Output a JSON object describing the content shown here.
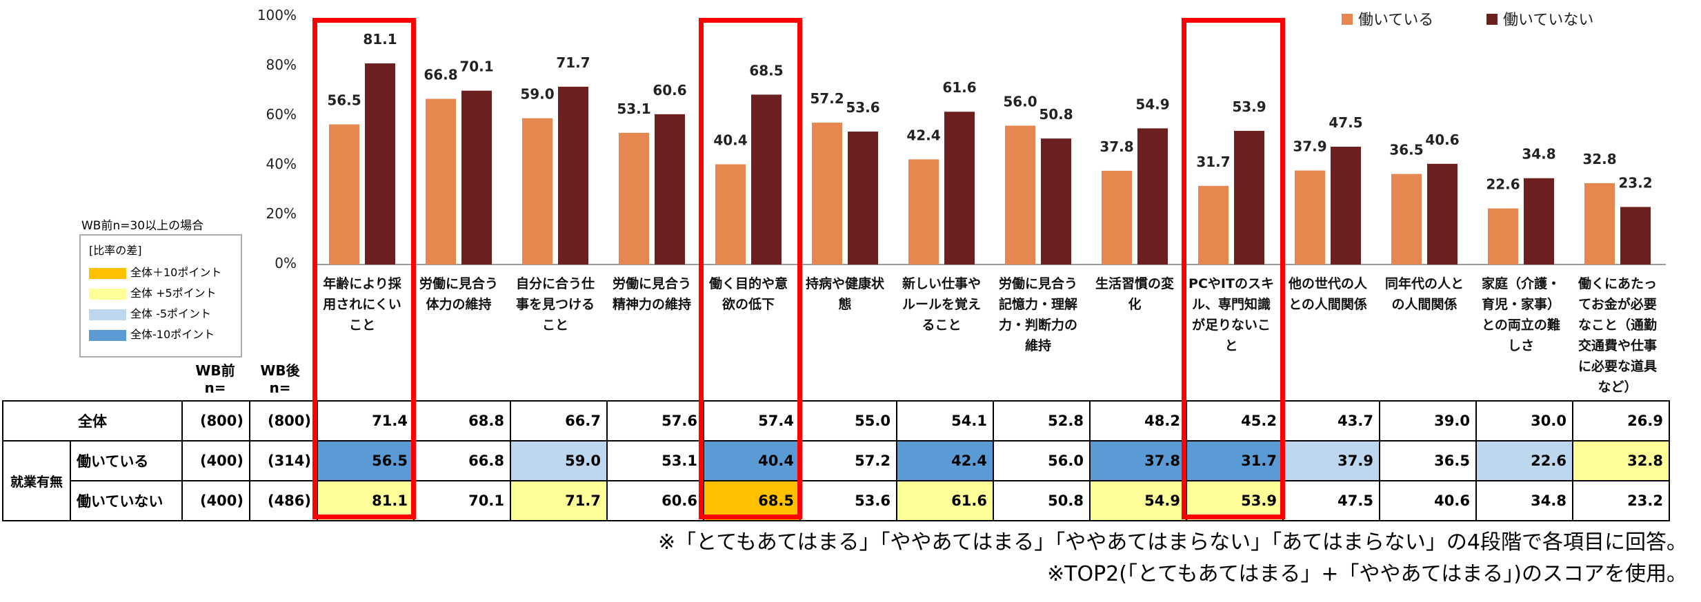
{
  "chart_data": {
    "type": "bar",
    "yticks": [
      "100%",
      "80%",
      "60%",
      "40%",
      "20%",
      "0%"
    ],
    "ylim": [
      0,
      100
    ],
    "categories": [
      "年齢により採用されにくいこと",
      "労働に見合う体力の維持",
      "自分に合う仕事を見つけること",
      "労働に見合う精神力の維持",
      "働く目的や意欲の低下",
      "持病や健康状態",
      "新しい仕事やルールを覚えること",
      "労働に見合う記憶力・理解力・判断力の維持",
      "生活習慣の変化",
      "PCやITのスキル、専門知識が足りないこと",
      "他の世代の人との人間関係",
      "同年代の人との人間関係",
      "家庭（介護・育児・家事）との両立の難しさ",
      "働くにあたってお金が必要なこと（通勤交通費や仕事に必要な道具など）"
    ],
    "series": [
      {
        "name": "働いている",
        "color": "#E6874F",
        "values": [
          56.5,
          66.8,
          59.0,
          53.1,
          40.4,
          57.2,
          42.4,
          56.0,
          37.8,
          31.7,
          37.9,
          36.5,
          22.6,
          32.8
        ]
      },
      {
        "name": "働いていない",
        "color": "#6B1F1F",
        "values": [
          81.1,
          70.1,
          71.7,
          60.6,
          68.5,
          53.6,
          61.6,
          50.8,
          54.9,
          53.9,
          47.5,
          40.6,
          34.8,
          23.2
        ]
      }
    ],
    "legend_position": "top-right",
    "highlighted_categories": [
      0,
      4,
      9
    ]
  },
  "legend_diff": {
    "note": "WB前n=30以上の場合",
    "title": "[比率の差]",
    "items": [
      {
        "label": "全体＋10ポイント",
        "color": "#FFC000"
      },
      {
        "label": "全体 +5ポイント",
        "color": "#FFFF99"
      },
      {
        "label": "全体 -5ポイント",
        "color": "#BDD7EE"
      },
      {
        "label": "全体-10ポイント",
        "color": "#5B9BD5"
      }
    ]
  },
  "table": {
    "head_before": "WB前",
    "head_after": "WB後",
    "head_n": "n=",
    "group_label": "就業有無",
    "rows": [
      {
        "label": "全体",
        "n_before": "(800)",
        "n_after": "(800)",
        "values": [
          "71.4",
          "68.8",
          "66.7",
          "57.6",
          "57.4",
          "55.0",
          "54.1",
          "52.8",
          "48.2",
          "45.2",
          "43.7",
          "39.0",
          "30.0",
          "26.9"
        ],
        "colors": [
          "",
          "",
          "",
          "",
          "",
          "",
          "",
          "",
          "",
          "",
          "",
          "",
          "",
          ""
        ]
      },
      {
        "label": "働いている",
        "n_before": "(400)",
        "n_after": "(314)",
        "values": [
          "56.5",
          "66.8",
          "59.0",
          "53.1",
          "40.4",
          "57.2",
          "42.4",
          "56.0",
          "37.8",
          "31.7",
          "37.9",
          "36.5",
          "22.6",
          "32.8"
        ],
        "colors": [
          "#5B9BD5",
          "",
          "#BDD7EE",
          "",
          "#5B9BD5",
          "",
          "#5B9BD5",
          "",
          "#5B9BD5",
          "#5B9BD5",
          "#BDD7EE",
          "",
          "#BDD7EE",
          "#FFFF99"
        ]
      },
      {
        "label": "働いていない",
        "n_before": "(400)",
        "n_after": "(486)",
        "values": [
          "81.1",
          "70.1",
          "71.7",
          "60.6",
          "68.5",
          "53.6",
          "61.6",
          "50.8",
          "54.9",
          "53.9",
          "47.5",
          "40.6",
          "34.8",
          "23.2"
        ],
        "colors": [
          "#FFFF99",
          "",
          "#FFFF99",
          "",
          "#FFC000",
          "",
          "#FFFF99",
          "",
          "#FFFF99",
          "#FFFF99",
          "",
          "",
          "",
          ""
        ]
      }
    ]
  },
  "notes": [
    "※「とてもあてはまる」「ややあてはまる」「ややあてはまらない」「あてはまらない」の4段階で各項目に回答。",
    "※TOP2(「とてもあてはまる」+「ややあてはまる」)のスコアを使用。"
  ]
}
